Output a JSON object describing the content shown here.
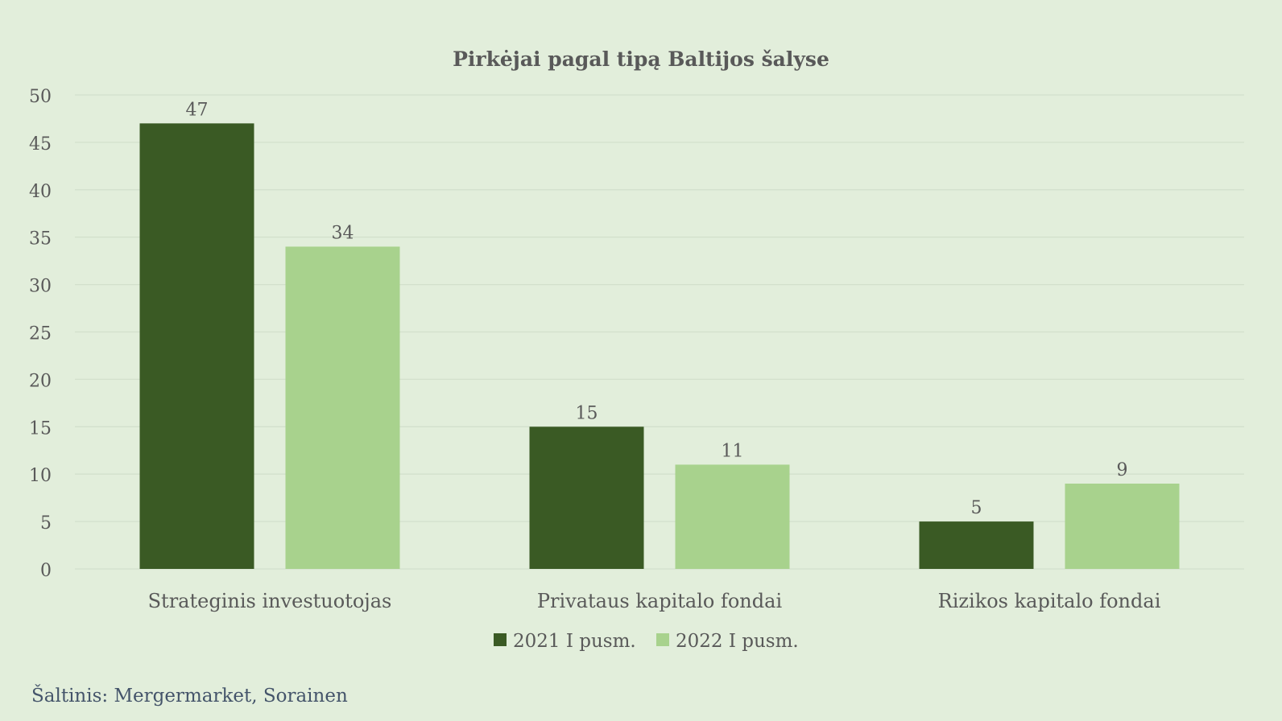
{
  "colors": {
    "background": "#e2eedb",
    "series_2021": "#3a5a24",
    "series_2022": "#a8d28d",
    "gridline": "#d3e0cc",
    "text": "#595959",
    "source_text": "#44546a"
  },
  "chart_data": {
    "type": "bar",
    "title": "Pirkėjai pagal tipą Baltijos šalyse",
    "xlabel": "",
    "ylabel": "",
    "categories": [
      "Strateginis investuotojas",
      "Privataus kapitalo fondai",
      "Rizikos kapitalo fondai"
    ],
    "series": [
      {
        "name": "2021 I pusm.",
        "values": [
          47,
          15,
          5
        ]
      },
      {
        "name": "2022 I pusm.",
        "values": [
          34,
          11,
          9
        ]
      }
    ],
    "ylim": [
      0,
      50
    ],
    "yticks": [
      0,
      5,
      10,
      15,
      20,
      25,
      30,
      35,
      40,
      45,
      50
    ],
    "grid": true,
    "legend_position": "bottom",
    "data_labels": true
  },
  "source": "Šaltinis: Mergermarket, Sorainen"
}
